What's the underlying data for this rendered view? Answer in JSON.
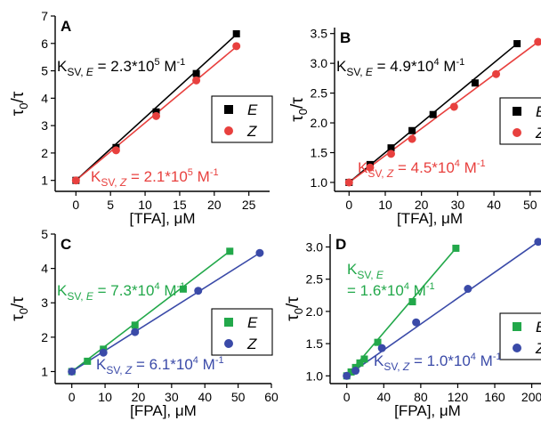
{
  "chart_data": [
    {
      "panel": "A",
      "type": "scatter",
      "xlabel": "[TFA], μM",
      "ylabel": "τ0/τ",
      "xlim": [
        -3,
        28
      ],
      "ylim": [
        0.6,
        7
      ],
      "xticks": [
        0,
        5,
        10,
        15,
        20,
        25
      ],
      "yticks": [
        1,
        2,
        3,
        4,
        5,
        6,
        7
      ],
      "legend": "right",
      "series": [
        {
          "name": "E",
          "marker": "square",
          "color": "#000000",
          "x": [
            0,
            5.8,
            11.6,
            17.4,
            23.2
          ],
          "y": [
            1.0,
            2.2,
            3.5,
            4.9,
            6.35
          ],
          "fit": [
            [
              0,
              1.0
            ],
            [
              23.3,
              6.35
            ]
          ]
        },
        {
          "name": "Z",
          "marker": "circle",
          "color": "#e8403e",
          "x": [
            0,
            5.8,
            11.6,
            17.4,
            23.2
          ],
          "y": [
            1.0,
            2.1,
            3.35,
            4.65,
            5.9
          ],
          "fit": [
            [
              0,
              1.0
            ],
            [
              23.3,
              5.9
            ]
          ]
        }
      ],
      "annotations": [
        {
          "prefix": "K",
          "sub": "SV, ",
          "subItalic": "E",
          "mid": " = 2.3*10",
          "sup": "5",
          "tail": " M",
          "sup2": "-1",
          "color": "#000000"
        },
        {
          "prefix": "K",
          "sub": "SV, ",
          "subItalic": "Z",
          "mid": " = 2.1*10",
          "sup": "5",
          "tail": " M",
          "sup2": "-1",
          "color": "#e8403e"
        }
      ]
    },
    {
      "panel": "B",
      "type": "scatter",
      "xlabel": "[TFA], μM",
      "ylabel": "τ0/τ",
      "xlim": [
        -4,
        53
      ],
      "ylim": [
        0.85,
        3.6
      ],
      "xticks": [
        0,
        10,
        20,
        30,
        40,
        50
      ],
      "yticks": [
        1.0,
        1.5,
        2.0,
        2.5,
        3.0,
        3.5
      ],
      "tick_labels_y": [
        "1.0",
        "1.5",
        "2.0",
        "2.5",
        "3.0",
        "3.5"
      ],
      "legend": "right",
      "series": [
        {
          "name": "E",
          "marker": "square",
          "color": "#000000",
          "x": [
            0,
            5.8,
            11.6,
            17.4,
            23.2,
            34.8,
            46.4
          ],
          "y": [
            1.0,
            1.3,
            1.58,
            1.87,
            2.14,
            2.67,
            3.33
          ],
          "fit": [
            [
              0,
              1.0
            ],
            [
              46.4,
              3.33
            ]
          ]
        },
        {
          "name": "Z",
          "marker": "circle",
          "color": "#e8403e",
          "x": [
            0,
            5.8,
            11.6,
            17.4,
            29,
            40.6,
            52.2
          ],
          "y": [
            1.0,
            1.25,
            1.48,
            1.73,
            2.27,
            2.82,
            3.36
          ],
          "fit": [
            [
              0,
              1.0
            ],
            [
              52.2,
              3.36
            ]
          ]
        }
      ],
      "annotations": [
        {
          "prefix": "K",
          "sub": "SV, ",
          "subItalic": "E",
          "mid": " = 4.9*10",
          "sup": "4",
          "tail": " M",
          "sup2": "-1",
          "color": "#000000"
        },
        {
          "prefix": "K",
          "sub": "SV, ",
          "subItalic": "Z",
          "mid": " = 4.5*10",
          "sup": "4",
          "tail": " M",
          "sup2": "-1",
          "color": "#e8403e"
        }
      ]
    },
    {
      "panel": "C",
      "type": "scatter",
      "xlabel": "[FPA], μM",
      "ylabel": "τ0/τ",
      "xlim": [
        -5,
        60
      ],
      "ylim": [
        0.65,
        5
      ],
      "xticks": [
        0,
        10,
        20,
        30,
        40,
        50,
        60
      ],
      "yticks": [
        1,
        2,
        3,
        4,
        5
      ],
      "legend": "right",
      "series": [
        {
          "name": "E",
          "marker": "square",
          "color": "#22a84a",
          "x": [
            0,
            4.7,
            9.5,
            19,
            33.5,
            47.5
          ],
          "y": [
            1.0,
            1.3,
            1.65,
            2.35,
            3.4,
            4.5
          ],
          "fit": [
            [
              0,
              1.0
            ],
            [
              47.5,
              4.5
            ]
          ]
        },
        {
          "name": "Z",
          "marker": "circle",
          "color": "#3a4aa8",
          "x": [
            0,
            9.5,
            19,
            38,
            56.5
          ],
          "y": [
            1.0,
            1.55,
            2.15,
            3.35,
            4.45
          ],
          "fit": [
            [
              0,
              1.0
            ],
            [
              56.5,
              4.45
            ]
          ]
        }
      ],
      "annotations": [
        {
          "prefix": "K",
          "sub": "SV, ",
          "subItalic": "E",
          "mid": " = 7.3*10",
          "sup": "4",
          "tail": " M",
          "sup2": "-1",
          "color": "#22a84a"
        },
        {
          "prefix": "K",
          "sub": "SV, ",
          "subItalic": "Z",
          "mid": " = 6.1*10",
          "sup": "4",
          "tail": " M",
          "sup2": "-1",
          "color": "#3a4aa8"
        }
      ]
    },
    {
      "panel": "D",
      "type": "scatter",
      "xlabel": "[FPA], μM",
      "ylabel": "τ0/τ",
      "xlim": [
        -18,
        210
      ],
      "ylim": [
        0.88,
        3.2
      ],
      "xticks": [
        0,
        40,
        80,
        120,
        160,
        200
      ],
      "yticks": [
        1.0,
        1.5,
        2.0,
        2.5,
        3.0
      ],
      "tick_labels_y": [
        "1.0",
        "1.5",
        "2.0",
        "2.5",
        "3.0"
      ],
      "legend": "right",
      "series": [
        {
          "name": "E",
          "marker": "square",
          "color": "#22a84a",
          "x": [
            0,
            4.7,
            9.5,
            14.2,
            19,
            33.5,
            71,
            118
          ],
          "y": [
            1.0,
            1.06,
            1.13,
            1.2,
            1.26,
            1.52,
            2.15,
            2.98
          ],
          "fit": [
            [
              0,
              1.0
            ],
            [
              118,
              2.98
            ]
          ]
        },
        {
          "name": "Z",
          "marker": "circle",
          "color": "#3a4aa8",
          "x": [
            0,
            9.5,
            38,
            75,
            131,
            207
          ],
          "y": [
            1.0,
            1.08,
            1.43,
            1.83,
            2.35,
            3.08
          ],
          "fit": [
            [
              0,
              1.0
            ],
            [
              207,
              3.08
            ]
          ]
        }
      ],
      "annotations": [
        {
          "prefix": "K",
          "sub": "SV, ",
          "subItalic": "E",
          "mid": "",
          "sup": "",
          "tail": "",
          "sup2": "",
          "color": "#22a84a",
          "line2": {
            "mid": "= 1.6*10",
            "sup": "4",
            "tail": " M",
            "sup2": "-1"
          }
        },
        {
          "prefix": "K",
          "sub": "SV, ",
          "subItalic": "Z",
          "mid": " = 1.0*10",
          "sup": "4",
          "tail": " M",
          "sup2": "-1",
          "color": "#3a4aa8"
        }
      ]
    }
  ]
}
